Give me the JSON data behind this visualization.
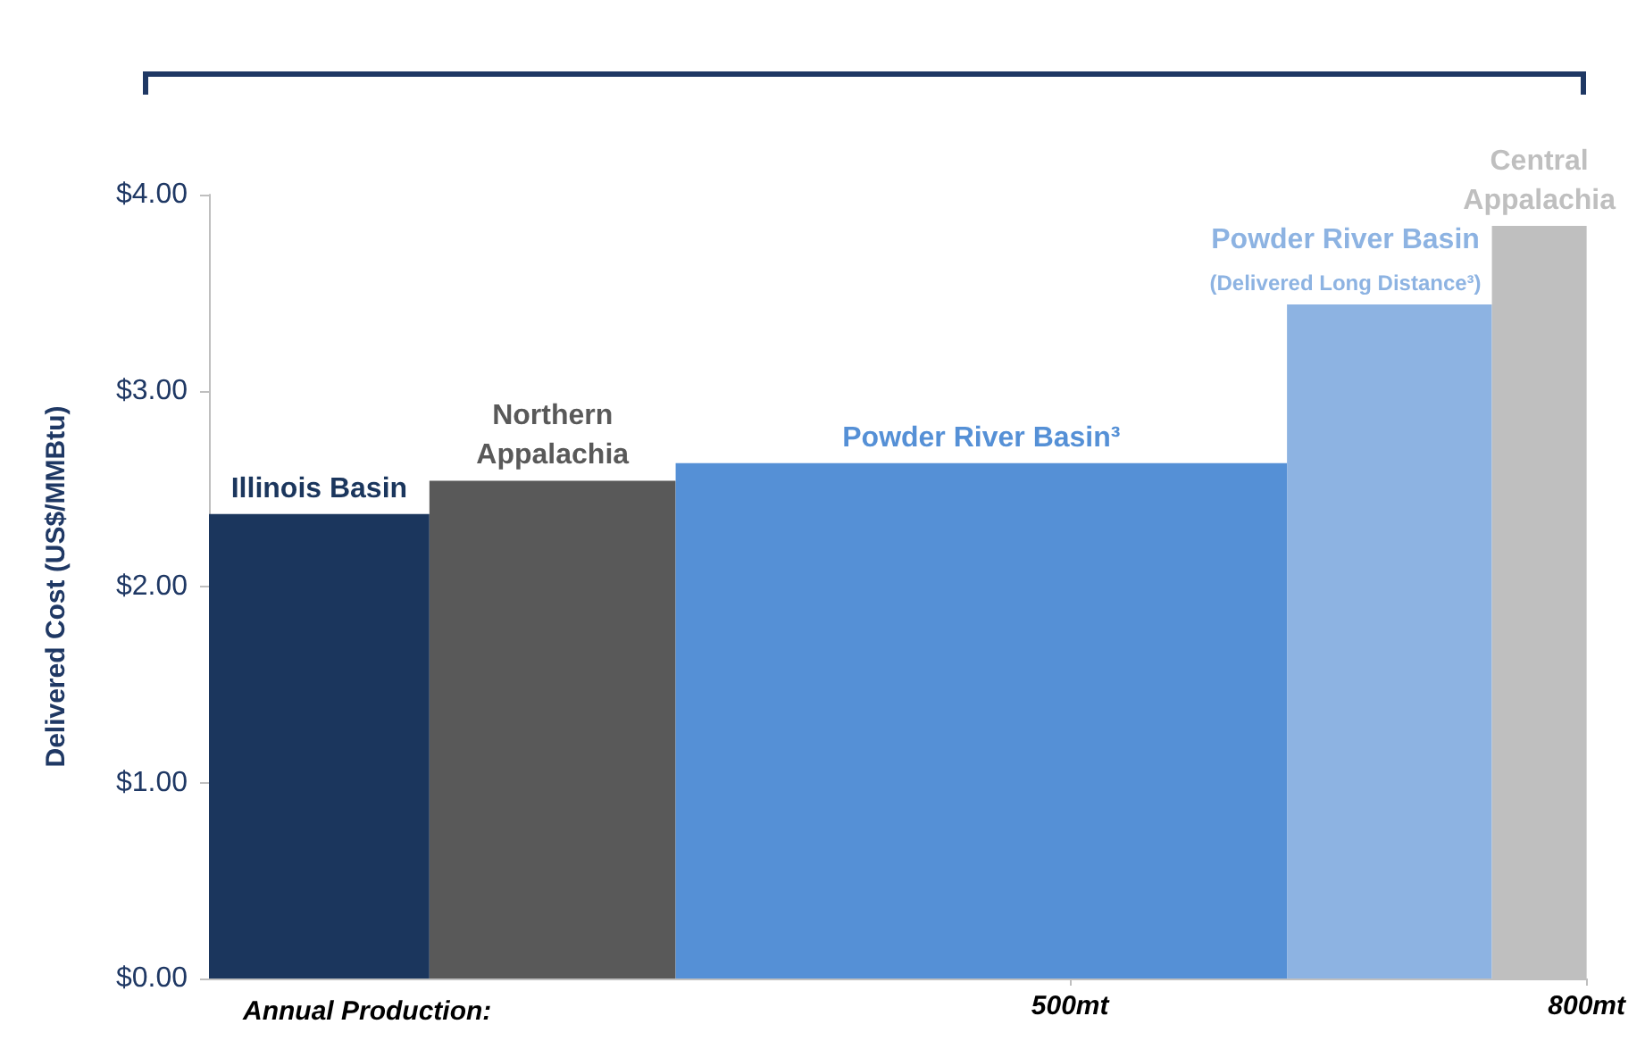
{
  "chart_data": {
    "type": "histogram",
    "ylabel": "Delivered Cost (US$/MMBtu)",
    "xlim": [
      0,
      800
    ],
    "xticks": [
      {
        "value": 500,
        "label": "500mt"
      },
      {
        "value": 800,
        "label": "800mt"
      }
    ],
    "ylim": [
      0,
      4
    ],
    "yticks": [
      {
        "value": 0,
        "label": "$0.00"
      },
      {
        "value": 1,
        "label": "$1.00"
      },
      {
        "value": 2,
        "label": "$2.00"
      },
      {
        "value": 3,
        "label": "$3.00"
      },
      {
        "value": 4,
        "label": "$4.00"
      }
    ],
    "grid": false,
    "bins": [
      0,
      128,
      271,
      626,
      745,
      800
    ],
    "values": [
      2.37,
      2.54,
      2.63,
      3.44,
      3.84
    ],
    "colors": [
      "#1b365d",
      "#595959",
      "#5590d6",
      "#8db3e2",
      "#bfbfbf"
    ],
    "annotations": [
      "Illinois Basin",
      "Northern\nAppalachia",
      "Powder River Basin³",
      "Powder River Basin\n(Delivered Long Distance³)",
      "Central\nAppalachia",
      "Annual Production:"
    ]
  }
}
